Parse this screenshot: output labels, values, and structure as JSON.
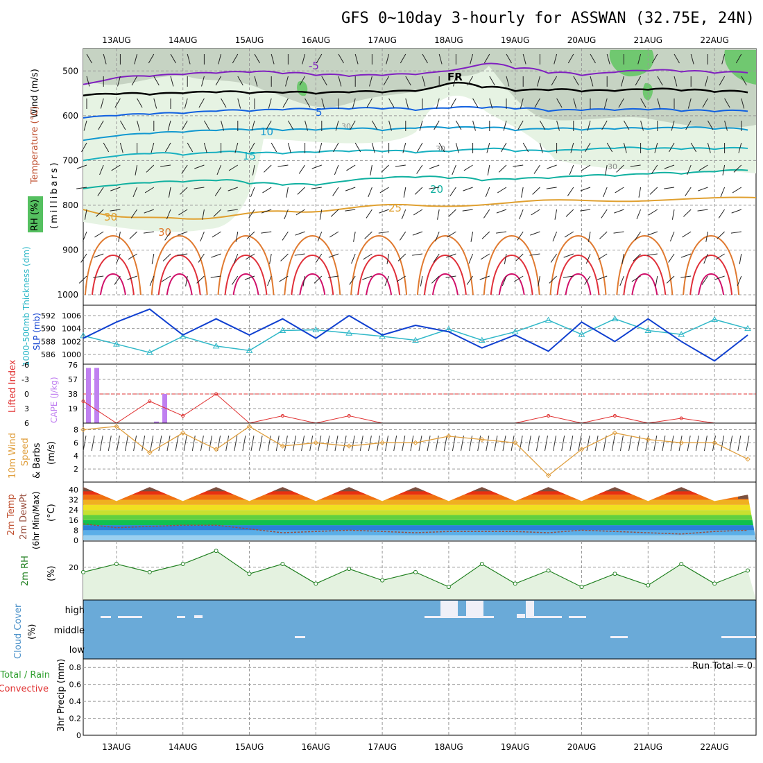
{
  "title": "GFS 0~10day 3-hourly for ASSWAN (32.75E, 24N)",
  "date_labels": [
    "13AUG",
    "14AUG",
    "15AUG",
    "16AUG",
    "17AUG",
    "18AUG",
    "19AUG",
    "20AUG",
    "21AUG",
    "22AUG"
  ],
  "colors": {
    "temperature_hot": "#e0303a",
    "temperature_25": "#e0a030",
    "temperature_20": "#10b0a0",
    "temperature_5": "#1060e0",
    "temperature_minus5": "#8020c0",
    "freezing": "#000000",
    "rh_light": "#e6f3e3",
    "rh_mid": "#c6d3c3",
    "rh_high": "#70c870",
    "slp": "#1040d0",
    "thickness": "#30b8c8",
    "lifted_index": "#e03030",
    "cape": "#c080f0",
    "wind10m": "#e0a040",
    "dewpoint": "#9a5040",
    "rh2m": "#208020",
    "cloud": "#6aaad8",
    "cloud_gap": "#f0f0f8"
  },
  "panels": {
    "upper_air": {
      "ylabel_wind": "Wind (m/s)",
      "ylabel_temp": "Temperature (°C)",
      "ylabel_rh": "RH (%)",
      "ylabel_pressure": "(millibars)",
      "y_ticks": [
        "500",
        "600",
        "700",
        "800",
        "900",
        "1000"
      ],
      "contour_labels": [
        "-5",
        "FR",
        "5",
        "10",
        "15",
        "20",
        "25",
        "30",
        "30"
      ],
      "rh_labels": [
        "30",
        "30",
        "30"
      ]
    },
    "slp_thickness": {
      "ylabel_thickness": "1000-500mb Thickness (dm)",
      "ylabel_slp": "SLP (mb)",
      "thickness_ticks": [
        "592",
        "590",
        "588",
        "586"
      ],
      "slp_ticks": [
        "1006",
        "1004",
        "1002",
        "1000"
      ]
    },
    "stability": {
      "ylabel_li": "Lifted Index",
      "ylabel_cape": "CAPE (J/kg)",
      "li_ticks": [
        "6",
        "3",
        "0",
        "-3",
        "-6"
      ],
      "cape_ticks": [
        "76",
        "57",
        "38",
        "19"
      ]
    },
    "wind10m": {
      "ylabel_a": "10m Wind",
      "ylabel_b": "Speed",
      "ylabel_c": "& Barbs",
      "ylabel_d": "(m/s)",
      "y_ticks": [
        "8",
        "6",
        "4",
        "2"
      ]
    },
    "temp2m": {
      "ylabel_a": "2m Temp",
      "ylabel_b": "2m DewPt",
      "ylabel_c": "(6hr Min/Max)",
      "ylabel_d": "(°C)",
      "y_ticks": [
        "40",
        "32",
        "24",
        "16",
        "8",
        "0"
      ]
    },
    "rh2m": {
      "ylabel_a": "2m RH",
      "ylabel_b": "(%)",
      "y_ticks": [
        "20"
      ]
    },
    "cloud": {
      "ylabel_a": "Cloud Cover",
      "ylabel_b": "(%)",
      "levels": [
        "high",
        "middle",
        "low"
      ]
    },
    "precip": {
      "ylabel_a": "Total / Rain",
      "ylabel_b": "Convective",
      "ylabel_c": "3hr Precip (mm)",
      "y_ticks": [
        "0.8",
        "0.6",
        "0.4",
        "0.2",
        "0"
      ],
      "run_total": "Run Total = 0"
    }
  },
  "chart_data": [
    {
      "type": "line",
      "title": "Upper-air temperature isotherms",
      "x": [
        "12AUG12",
        "13AUG00",
        "13AUG12",
        "14AUG00",
        "14AUG12",
        "15AUG00",
        "15AUG12",
        "16AUG00",
        "16AUG12",
        "17AUG00",
        "17AUG12",
        "18AUG00",
        "18AUG12",
        "19AUG00",
        "19AUG12",
        "20AUG00",
        "20AUG12",
        "21AUG00",
        "21AUG12",
        "22AUG00",
        "22AUG06"
      ],
      "series": [
        {
          "name": "-5",
          "values": [
            530,
            515,
            512,
            508,
            505,
            503,
            506,
            510,
            512,
            510,
            508,
            500,
            485,
            495,
            505,
            510,
            503,
            500,
            502,
            505,
            504
          ]
        },
        {
          "name": "FR",
          "values": [
            555,
            552,
            553,
            550,
            548,
            550,
            549,
            551,
            548,
            548,
            545,
            528,
            537,
            545,
            543,
            546,
            545,
            542,
            544,
            547,
            548
          ]
        },
        {
          "name": "5",
          "values": [
            605,
            600,
            597,
            595,
            590,
            590,
            587,
            587,
            585,
            585,
            588,
            583,
            583,
            585,
            590,
            588,
            588,
            587,
            590,
            591,
            590
          ]
        },
        {
          "name": "10",
          "values": [
            655,
            645,
            640,
            637,
            633,
            632,
            633,
            632,
            630,
            633,
            628,
            628,
            628,
            633,
            630,
            632,
            630,
            630,
            628,
            630,
            632
          ]
        },
        {
          "name": "15",
          "values": [
            700,
            690,
            685,
            688,
            682,
            685,
            685,
            682,
            680,
            680,
            683,
            680,
            675,
            680,
            680,
            677,
            673,
            675,
            675,
            675,
            673
          ]
        },
        {
          "name": "20",
          "values": [
            763,
            755,
            750,
            748,
            745,
            752,
            755,
            755,
            745,
            740,
            738,
            740,
            745,
            742,
            740,
            735,
            735,
            730,
            730,
            725,
            722
          ]
        }
      ]
    },
    {
      "type": "line",
      "title": "SLP and 1000-500mb thickness",
      "x": [
        "12AUG12",
        "13AUG00",
        "13AUG12",
        "14AUG00",
        "14AUG12",
        "15AUG00",
        "15AUG12",
        "16AUG00",
        "16AUG12",
        "17AUG00",
        "17AUG12",
        "18AUG00",
        "18AUG12",
        "19AUG00",
        "19AUG12",
        "20AUG00",
        "20AUG12",
        "21AUG00",
        "21AUG12",
        "22AUG00",
        "22AUG06"
      ],
      "series": [
        {
          "name": "SLP",
          "values": [
            1002.5,
            1005,
            1007,
            1003,
            1005.5,
            1003,
            1005.5,
            1002.5,
            1006,
            1003,
            1004.5,
            1003.5,
            1001,
            1003,
            1000.5,
            1005,
            1002,
            1005.5,
            1002,
            999,
            1003
          ]
        },
        {
          "name": "Thickness",
          "values": [
            588.9,
            587.6,
            586.3,
            588.8,
            587.3,
            586.6,
            589.7,
            589.8,
            589.3,
            588.8,
            588.2,
            589.9,
            588.2,
            589.5,
            591.3,
            589.1,
            591.5,
            589.7,
            589.1,
            591.4,
            590.0
          ]
        }
      ]
    },
    {
      "type": "bar",
      "title": "CAPE and Lifted Index",
      "categories": [
        "12AUG12",
        "12AUG15",
        "13AUG12",
        "13AUG15"
      ],
      "series": [
        {
          "name": "CAPE",
          "values": [
            72,
            72,
            2,
            38
          ]
        }
      ],
      "lifted_index_x": [
        "12AUG12",
        "13AUG00",
        "13AUG12",
        "14AUG00",
        "14AUG12",
        "15AUG00",
        "15AUG12",
        "16AUG00",
        "16AUG12",
        "17AUG00",
        "17AUG12",
        "18AUG00",
        "18AUG12",
        "19AUG00",
        "19AUG12",
        "20AUG00",
        "20AUG12",
        "21AUG00",
        "21AUG12",
        "22AUG00"
      ],
      "lifted_index": [
        -1.5,
        -6,
        -1.5,
        -4.5,
        0,
        -6,
        -4.5,
        -6,
        -4.5,
        -6,
        -6,
        -6,
        -6,
        -6,
        -4.5,
        -6,
        -4.5,
        -6,
        -5,
        -6
      ]
    },
    {
      "type": "line",
      "title": "10m wind speed",
      "x": [
        "12AUG12",
        "13AUG00",
        "13AUG12",
        "14AUG00",
        "14AUG12",
        "15AUG00",
        "15AUG12",
        "16AUG00",
        "16AUG12",
        "17AUG00",
        "17AUG12",
        "18AUG00",
        "18AUG12",
        "19AUG00",
        "19AUG12",
        "20AUG00",
        "20AUG12",
        "21AUG00",
        "21AUG12",
        "22AUG00",
        "22AUG06"
      ],
      "series": [
        {
          "name": "Speed",
          "values": [
            8,
            8.5,
            4.5,
            7.5,
            5,
            8.5,
            5.5,
            6,
            5.5,
            6,
            6,
            7,
            6.5,
            6,
            1,
            5,
            7.5,
            6.5,
            6,
            6,
            3.5
          ]
        }
      ]
    },
    {
      "type": "area",
      "title": "2m temperature and dew point",
      "x": [
        "12AUG12",
        "13AUG00",
        "13AUG12",
        "14AUG00",
        "14AUG12",
        "15AUG00",
        "15AUG12",
        "16AUG00",
        "16AUG12",
        "17AUG00",
        "17AUG12",
        "18AUG00",
        "18AUG12",
        "19AUG00",
        "19AUG12",
        "20AUG00",
        "20AUG12",
        "21AUG00",
        "21AUG12",
        "22AUG00",
        "22AUG06"
      ],
      "series": [
        {
          "name": "2m Temp",
          "values": [
            42,
            31,
            42,
            31,
            42,
            31,
            42,
            31,
            42,
            31,
            42,
            31,
            42,
            31,
            42,
            31,
            42,
            31,
            42,
            31,
            36
          ]
        },
        {
          "name": "2m DewPt",
          "values": [
            13,
            10,
            11,
            12,
            12,
            9,
            6,
            7,
            8,
            7,
            6,
            7,
            7,
            7,
            6,
            8,
            7,
            6,
            5,
            7,
            8
          ]
        }
      ]
    },
    {
      "type": "area",
      "title": "2m relative humidity",
      "x": [
        "12AUG12",
        "13AUG00",
        "13AUG12",
        "14AUG00",
        "14AUG12",
        "15AUG00",
        "15AUG12",
        "16AUG00",
        "16AUG12",
        "17AUG00",
        "17AUG12",
        "18AUG00",
        "18AUG12",
        "19AUG00",
        "19AUG12",
        "20AUG00",
        "20AUG12",
        "21AUG00",
        "21AUG12",
        "22AUG00",
        "22AUG06"
      ],
      "series": [
        {
          "name": "2m RH",
          "values": [
            17,
            22,
            17,
            22,
            30,
            16,
            22,
            10,
            19,
            12,
            17,
            8,
            22,
            10,
            18,
            8,
            16,
            9,
            22,
            10,
            18
          ]
        }
      ]
    },
    {
      "type": "bar",
      "title": "3hr precipitation",
      "xlabel": "",
      "ylabel": "3hr Precip (mm)",
      "ylim": [
        0,
        0.9
      ],
      "categories": [
        "12AUG12",
        "22AUG06"
      ],
      "values": [
        0,
        0
      ]
    }
  ]
}
